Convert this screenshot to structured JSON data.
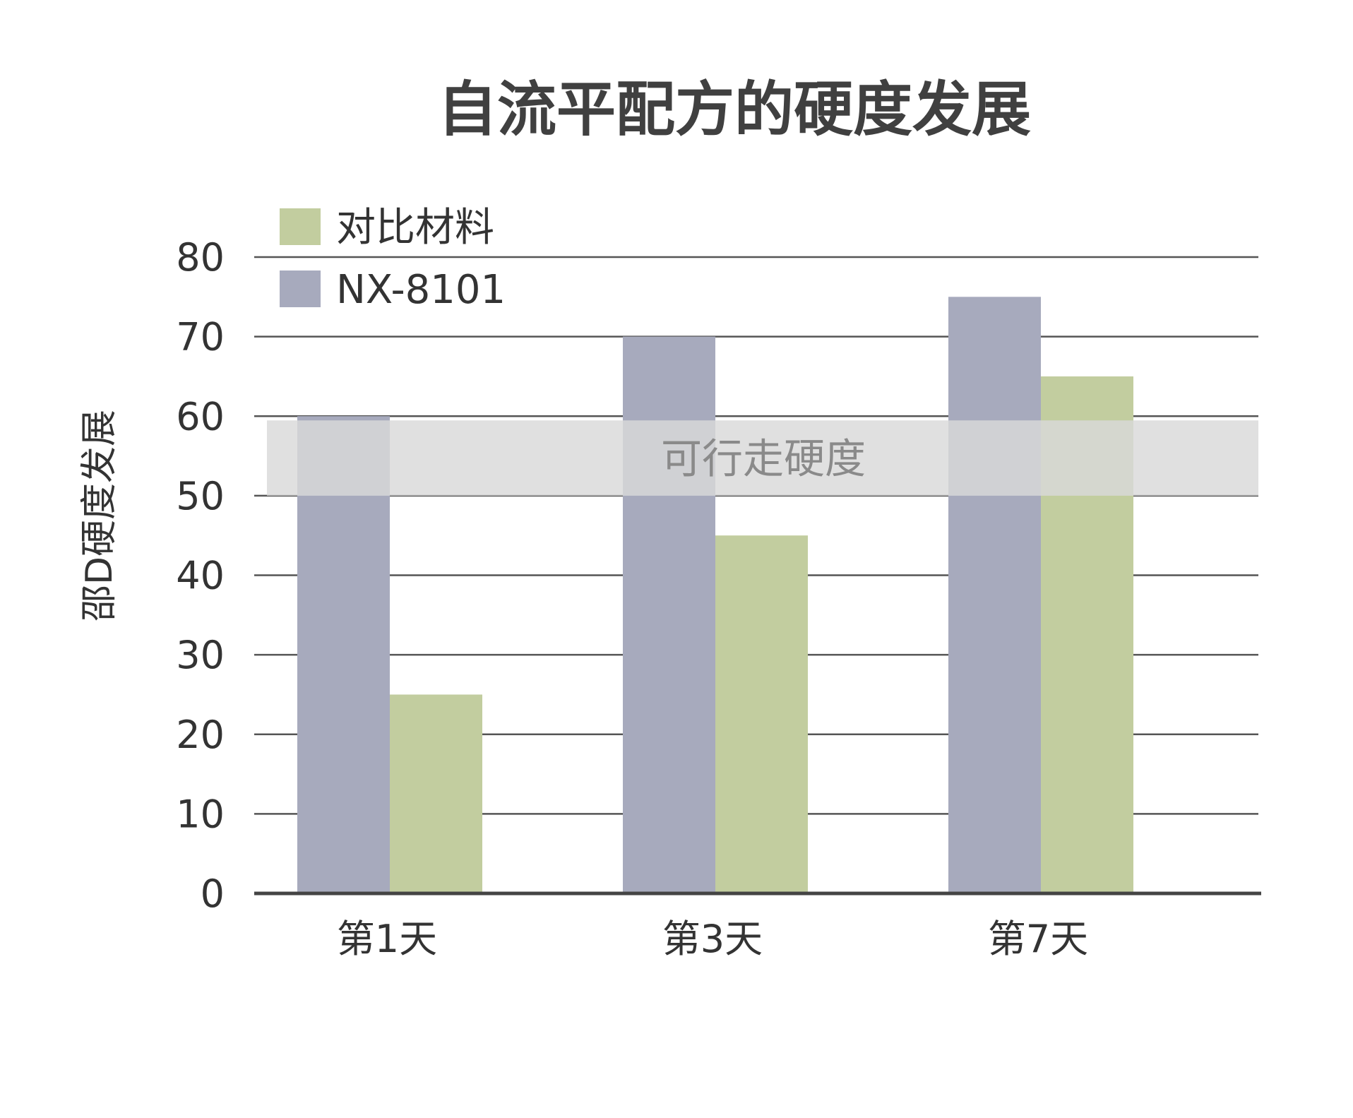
{
  "chart_data": {
    "type": "bar",
    "title": "自流平配方的硬度发展",
    "ylabel": "邵D硬度发展",
    "xlabel": "",
    "categories": [
      "第1天",
      "第3天",
      "第7天"
    ],
    "series": [
      {
        "name": "NX-8101",
        "values": [
          60,
          70,
          75
        ],
        "color": "#a7aabd"
      },
      {
        "name": "对比材料",
        "values": [
          25,
          45,
          65
        ],
        "color": "#c2cd9f"
      }
    ],
    "ylim": [
      0,
      80
    ],
    "yticks": [
      0,
      10,
      20,
      30,
      40,
      50,
      60,
      70,
      80
    ],
    "grid": true,
    "legend": {
      "placement": "top-left",
      "order": [
        "对比材料",
        "NX-8101"
      ]
    },
    "band": {
      "label": "可行走硬度",
      "from": 50,
      "to": 60,
      "color": "#d9d9d9"
    }
  }
}
